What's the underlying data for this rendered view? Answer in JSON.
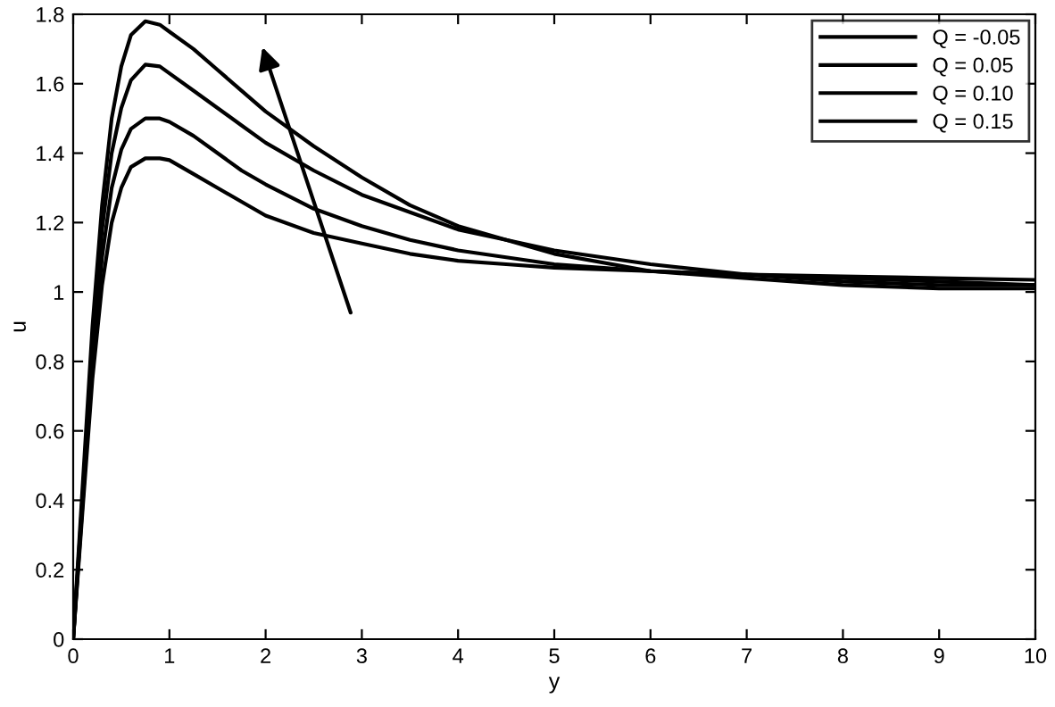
{
  "chart_data": {
    "type": "line",
    "xlabel": "y",
    "ylabel": "u",
    "x": [
      0,
      0.1,
      0.2,
      0.3,
      0.4,
      0.5,
      0.6,
      0.75,
      0.9,
      1.0,
      1.25,
      1.5,
      1.75,
      2,
      2.5,
      3,
      3.5,
      4,
      4.5,
      5,
      6,
      7,
      8,
      9,
      10
    ],
    "series": [
      {
        "name": "Q = -0.05",
        "color": "#000000",
        "values": [
          0,
          0.38,
          0.75,
          1.02,
          1.2,
          1.3,
          1.36,
          1.385,
          1.385,
          1.38,
          1.34,
          1.3,
          1.26,
          1.22,
          1.17,
          1.14,
          1.11,
          1.09,
          1.08,
          1.07,
          1.06,
          1.05,
          1.045,
          1.04,
          1.035
        ]
      },
      {
        "name": "Q = 0.05",
        "color": "#000000",
        "values": [
          0,
          0.4,
          0.8,
          1.1,
          1.3,
          1.41,
          1.47,
          1.5,
          1.5,
          1.49,
          1.45,
          1.4,
          1.35,
          1.31,
          1.24,
          1.19,
          1.15,
          1.12,
          1.1,
          1.08,
          1.06,
          1.05,
          1.04,
          1.03,
          1.02
        ]
      },
      {
        "name": "Q = 0.10",
        "color": "#000000",
        "values": [
          0,
          0.42,
          0.85,
          1.18,
          1.4,
          1.53,
          1.61,
          1.655,
          1.65,
          1.63,
          1.58,
          1.53,
          1.48,
          1.43,
          1.35,
          1.28,
          1.23,
          1.18,
          1.15,
          1.12,
          1.08,
          1.05,
          1.03,
          1.02,
          1.02
        ]
      },
      {
        "name": "Q = 0.15",
        "color": "#000000",
        "values": [
          0,
          0.45,
          0.9,
          1.25,
          1.5,
          1.65,
          1.74,
          1.78,
          1.77,
          1.75,
          1.7,
          1.64,
          1.58,
          1.52,
          1.42,
          1.33,
          1.25,
          1.19,
          1.15,
          1.11,
          1.06,
          1.04,
          1.02,
          1.01,
          1.01
        ]
      }
    ],
    "xlim": [
      0,
      10
    ],
    "xticks": [
      0,
      1,
      2,
      3,
      4,
      5,
      6,
      7,
      8,
      9,
      10
    ],
    "ylim": [
      0,
      1.8
    ],
    "yticks": [
      0,
      0.2,
      0.4,
      0.6,
      0.8,
      1,
      1.2,
      1.4,
      1.6,
      1.8
    ],
    "legend": "top right",
    "grid": false,
    "marker": "none",
    "line_style": "solid"
  }
}
